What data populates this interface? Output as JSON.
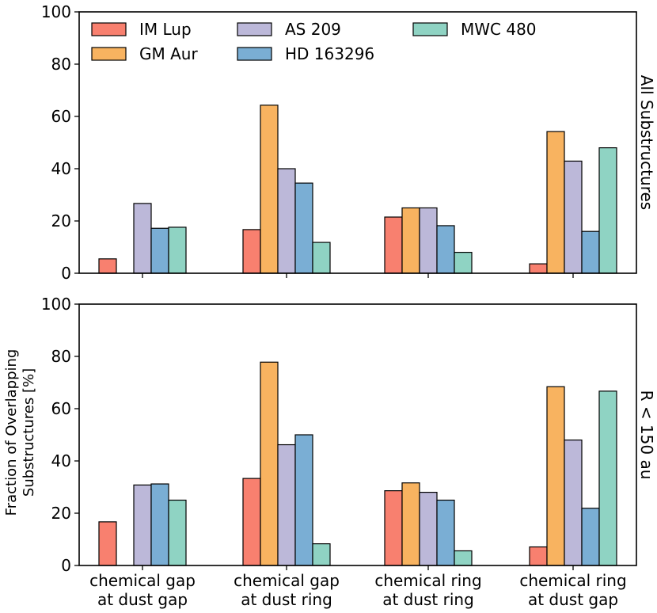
{
  "chart_data": [
    {
      "type": "bar",
      "panel_label": "All Substructures",
      "categories": [
        "chemical gap\nat dust gap",
        "chemical gap\nat dust ring",
        "chemical ring\nat dust ring",
        "chemical ring\nat dust gap"
      ],
      "series": [
        {
          "name": "IM Lup",
          "values": [
            5.5,
            16.7,
            21.5,
            3.6
          ]
        },
        {
          "name": "GM Aur",
          "values": [
            0,
            64.3,
            25.0,
            54.2
          ]
        },
        {
          "name": "AS 209",
          "values": [
            26.7,
            40.0,
            25.0,
            42.9
          ]
        },
        {
          "name": "HD 163296",
          "values": [
            17.2,
            34.5,
            18.2,
            16.0
          ]
        },
        {
          "name": "MWC 480",
          "values": [
            17.6,
            11.8,
            8.0,
            48.0
          ]
        }
      ],
      "ylim": [
        0,
        100
      ],
      "yticks": [
        0,
        20,
        40,
        60,
        80,
        100
      ],
      "legend": "top-left, 3 columns"
    },
    {
      "type": "bar",
      "panel_label": "R < 150 au",
      "categories": [
        "chemical gap\nat dust gap",
        "chemical gap\nat dust ring",
        "chemical ring\nat dust ring",
        "chemical ring\nat dust gap"
      ],
      "series": [
        {
          "name": "IM Lup",
          "values": [
            16.7,
            33.3,
            28.6,
            7.1
          ]
        },
        {
          "name": "GM Aur",
          "values": [
            0,
            77.8,
            31.6,
            68.4
          ]
        },
        {
          "name": "AS 209",
          "values": [
            30.8,
            46.2,
            28.0,
            48.0
          ]
        },
        {
          "name": "HD 163296",
          "values": [
            31.2,
            50.0,
            25.0,
            21.9
          ]
        },
        {
          "name": "MWC 480",
          "values": [
            25.0,
            8.3,
            5.6,
            66.7
          ]
        }
      ],
      "ylim": [
        0,
        100
      ],
      "yticks": [
        0,
        20,
        40,
        60,
        80,
        100
      ]
    }
  ],
  "ylabel_lines": [
    "Fraction of Overlapping",
    "Substructures [%]"
  ],
  "colors": {
    "IM Lup": "#f8806f",
    "GM Aur": "#f8b360",
    "AS 209": "#bcb8d9",
    "HD 163296": "#7aaed4",
    "MWC 480": "#8fd3c3"
  }
}
